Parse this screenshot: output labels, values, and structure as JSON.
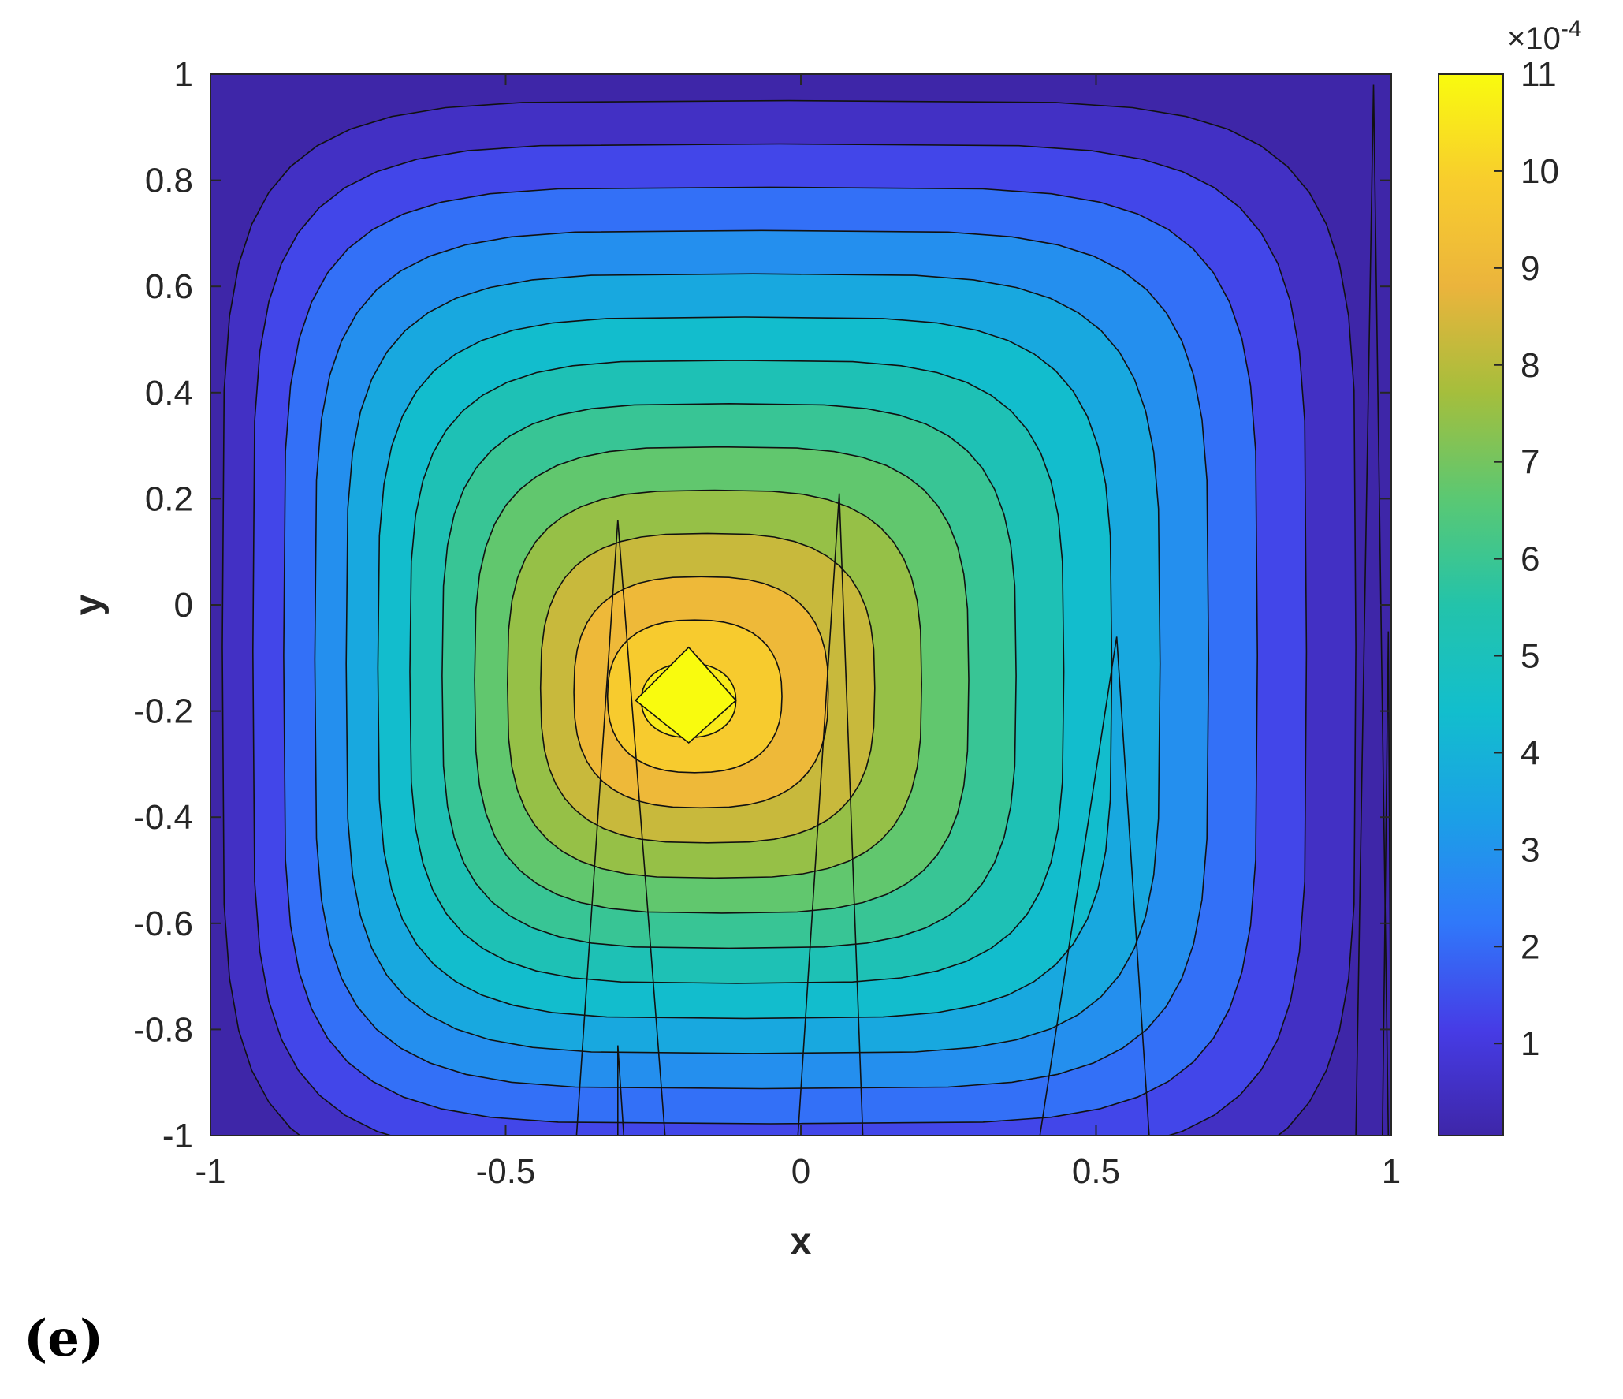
{
  "chart_data": {
    "type": "contour",
    "xlabel": "x",
    "ylabel": "y",
    "xlim": [
      -1,
      1
    ],
    "ylim": [
      -1,
      1
    ],
    "xticks": [
      -1,
      -0.5,
      0,
      0.5,
      1
    ],
    "xtick_labels": [
      "-1",
      "-0.5",
      "0",
      "0.5",
      "1"
    ],
    "yticks": [
      -1,
      -0.8,
      -0.6,
      -0.4,
      -0.2,
      0,
      0.2,
      0.4,
      0.6,
      0.8,
      1
    ],
    "ytick_labels": [
      "-1",
      "-0.8",
      "-0.6",
      "-0.4",
      "-0.2",
      "0",
      "0.2",
      "0.4",
      "0.6",
      "0.8",
      "1"
    ],
    "colorbar": {
      "multiplier_label": "×10",
      "multiplier_exponent": "-4",
      "range": [
        0.05,
        11
      ],
      "ticks": [
        1,
        2,
        3,
        4,
        5,
        6,
        7,
        8,
        9,
        10,
        11
      ],
      "tick_labels": [
        "1",
        "2",
        "3",
        "4",
        "5",
        "6",
        "7",
        "8",
        "9",
        "10",
        "11"
      ],
      "colormap": "parula"
    },
    "peak": {
      "x": -0.19,
      "y": -0.18,
      "value": 11
    },
    "contour_levels": [
      0.55,
      1.32,
      2.1,
      2.87,
      3.64,
      4.41,
      5.18,
      5.95,
      6.72,
      7.5,
      8.27,
      9.04,
      9.81,
      10.58
    ],
    "grid": false
  },
  "panel_label": "(e)"
}
